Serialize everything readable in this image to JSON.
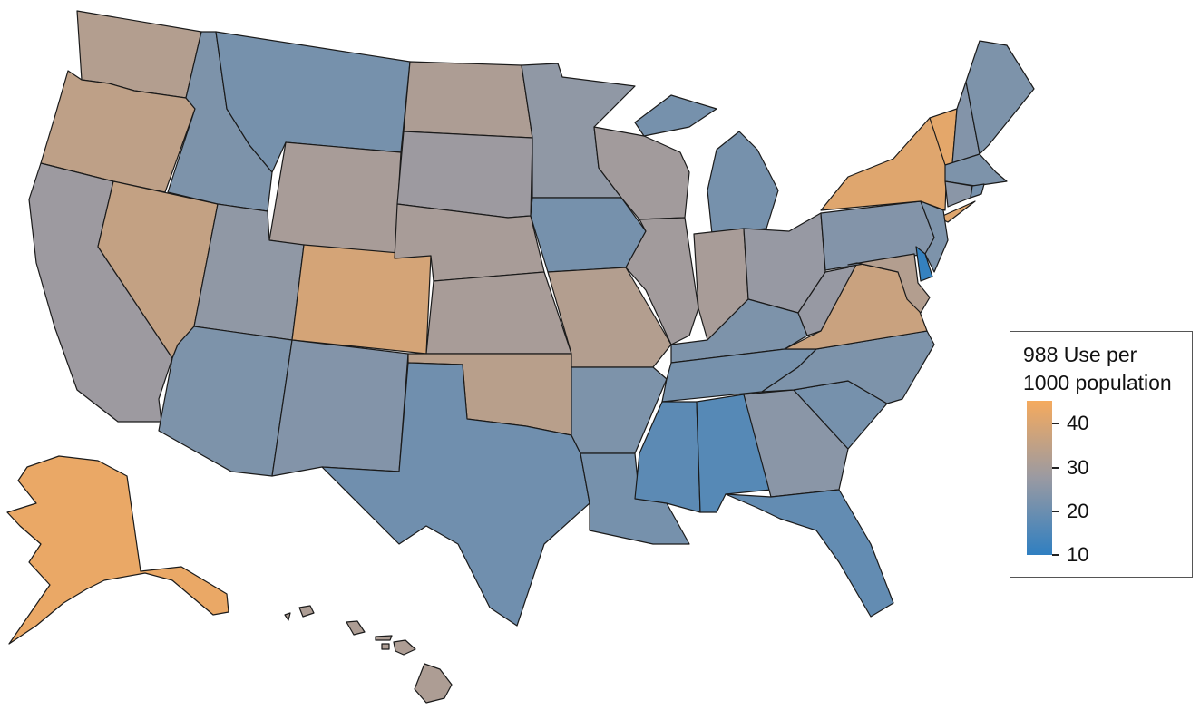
{
  "legend": {
    "title_line1": "988 Use per",
    "title_line2": "1000 population",
    "ticks": [
      "40",
      "30",
      "20",
      "10"
    ],
    "scale_min": 10,
    "scale_max": 43,
    "colors": {
      "low": "#2f7fc1",
      "mid": "#9a9aa2",
      "high": "#f5aa5e"
    }
  },
  "states": {
    "WA": 31,
    "OR": 33,
    "CA": 27,
    "NV": 34,
    "ID": 22,
    "MT": 21,
    "WY": 29,
    "UT": 25,
    "AZ": 22,
    "CO": 37,
    "NM": 23,
    "ND": 30,
    "SD": 27,
    "NE": 29,
    "KS": 29,
    "OK": 32,
    "TX": 20,
    "MN": 25,
    "IA": 21,
    "MO": 31,
    "AR": 22,
    "LA": 21,
    "WI": 28,
    "IL": 28,
    "MI": 21,
    "IN": 29,
    "OH": 26,
    "KY": 22,
    "TN": 21,
    "MS": 17,
    "AL": 16,
    "GA": 24,
    "FL": 18,
    "SC": 21,
    "NC": 22,
    "VA": 35,
    "WV": 26,
    "PA": 23,
    "NY": 39,
    "VT": 40,
    "NH": 23,
    "ME": 22,
    "MA": 22,
    "CT": 24,
    "RI": 21,
    "NJ": 22,
    "DE": 11,
    "MD": 31,
    "AK": 41,
    "HI": 30
  }
}
